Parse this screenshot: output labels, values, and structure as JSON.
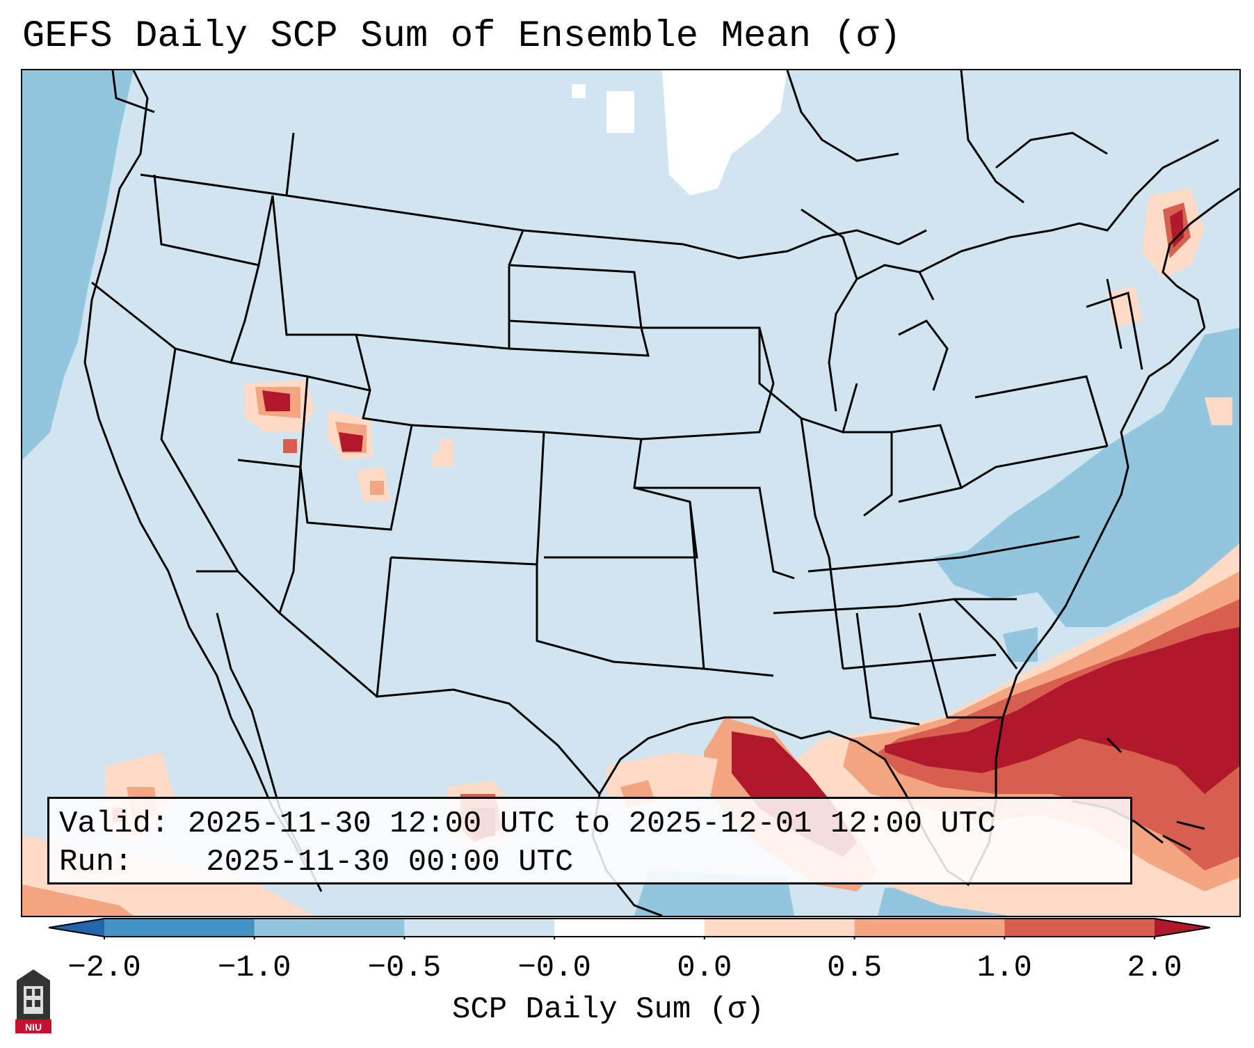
{
  "title": "GEFS Daily SCP Sum of Ensemble Mean (σ)",
  "info": {
    "valid_label": "Valid:",
    "valid_value": "2025-11-30 12:00 UTC to 2025-12-01 12:00 UTC",
    "run_label": "Run:",
    "run_value": "2025-11-30 00:00 UTC"
  },
  "colorbar": {
    "label": "SCP Daily Sum (σ)",
    "ticks": [
      "−2.0",
      "−1.0",
      "−0.5",
      "−0.0",
      "0.0",
      "0.5",
      "1.0",
      "2.0"
    ],
    "bins": [
      {
        "range": "<-2.0",
        "color": "#2166ac"
      },
      {
        "range": "-2.0 to -1.0",
        "color": "#4393c3"
      },
      {
        "range": "-1.0 to -0.5",
        "color": "#92c5de"
      },
      {
        "range": "-0.5 to -0.0",
        "color": "#d1e5f0"
      },
      {
        "range": "-0.0 to 0.0",
        "color": "#ffffff"
      },
      {
        "range": "0.0 to 0.5",
        "color": "#fddbc7"
      },
      {
        "range": "0.5 to 1.0",
        "color": "#f4a582"
      },
      {
        "range": "1.0 to 2.0",
        "color": "#d6604d"
      },
      {
        "range": ">2.0",
        "color": "#b2182b"
      }
    ]
  },
  "logo": {
    "text": "NIU",
    "color": "#c8102e"
  },
  "colors": {
    "background": "#d1e5f0",
    "boundary": "#000000"
  }
}
